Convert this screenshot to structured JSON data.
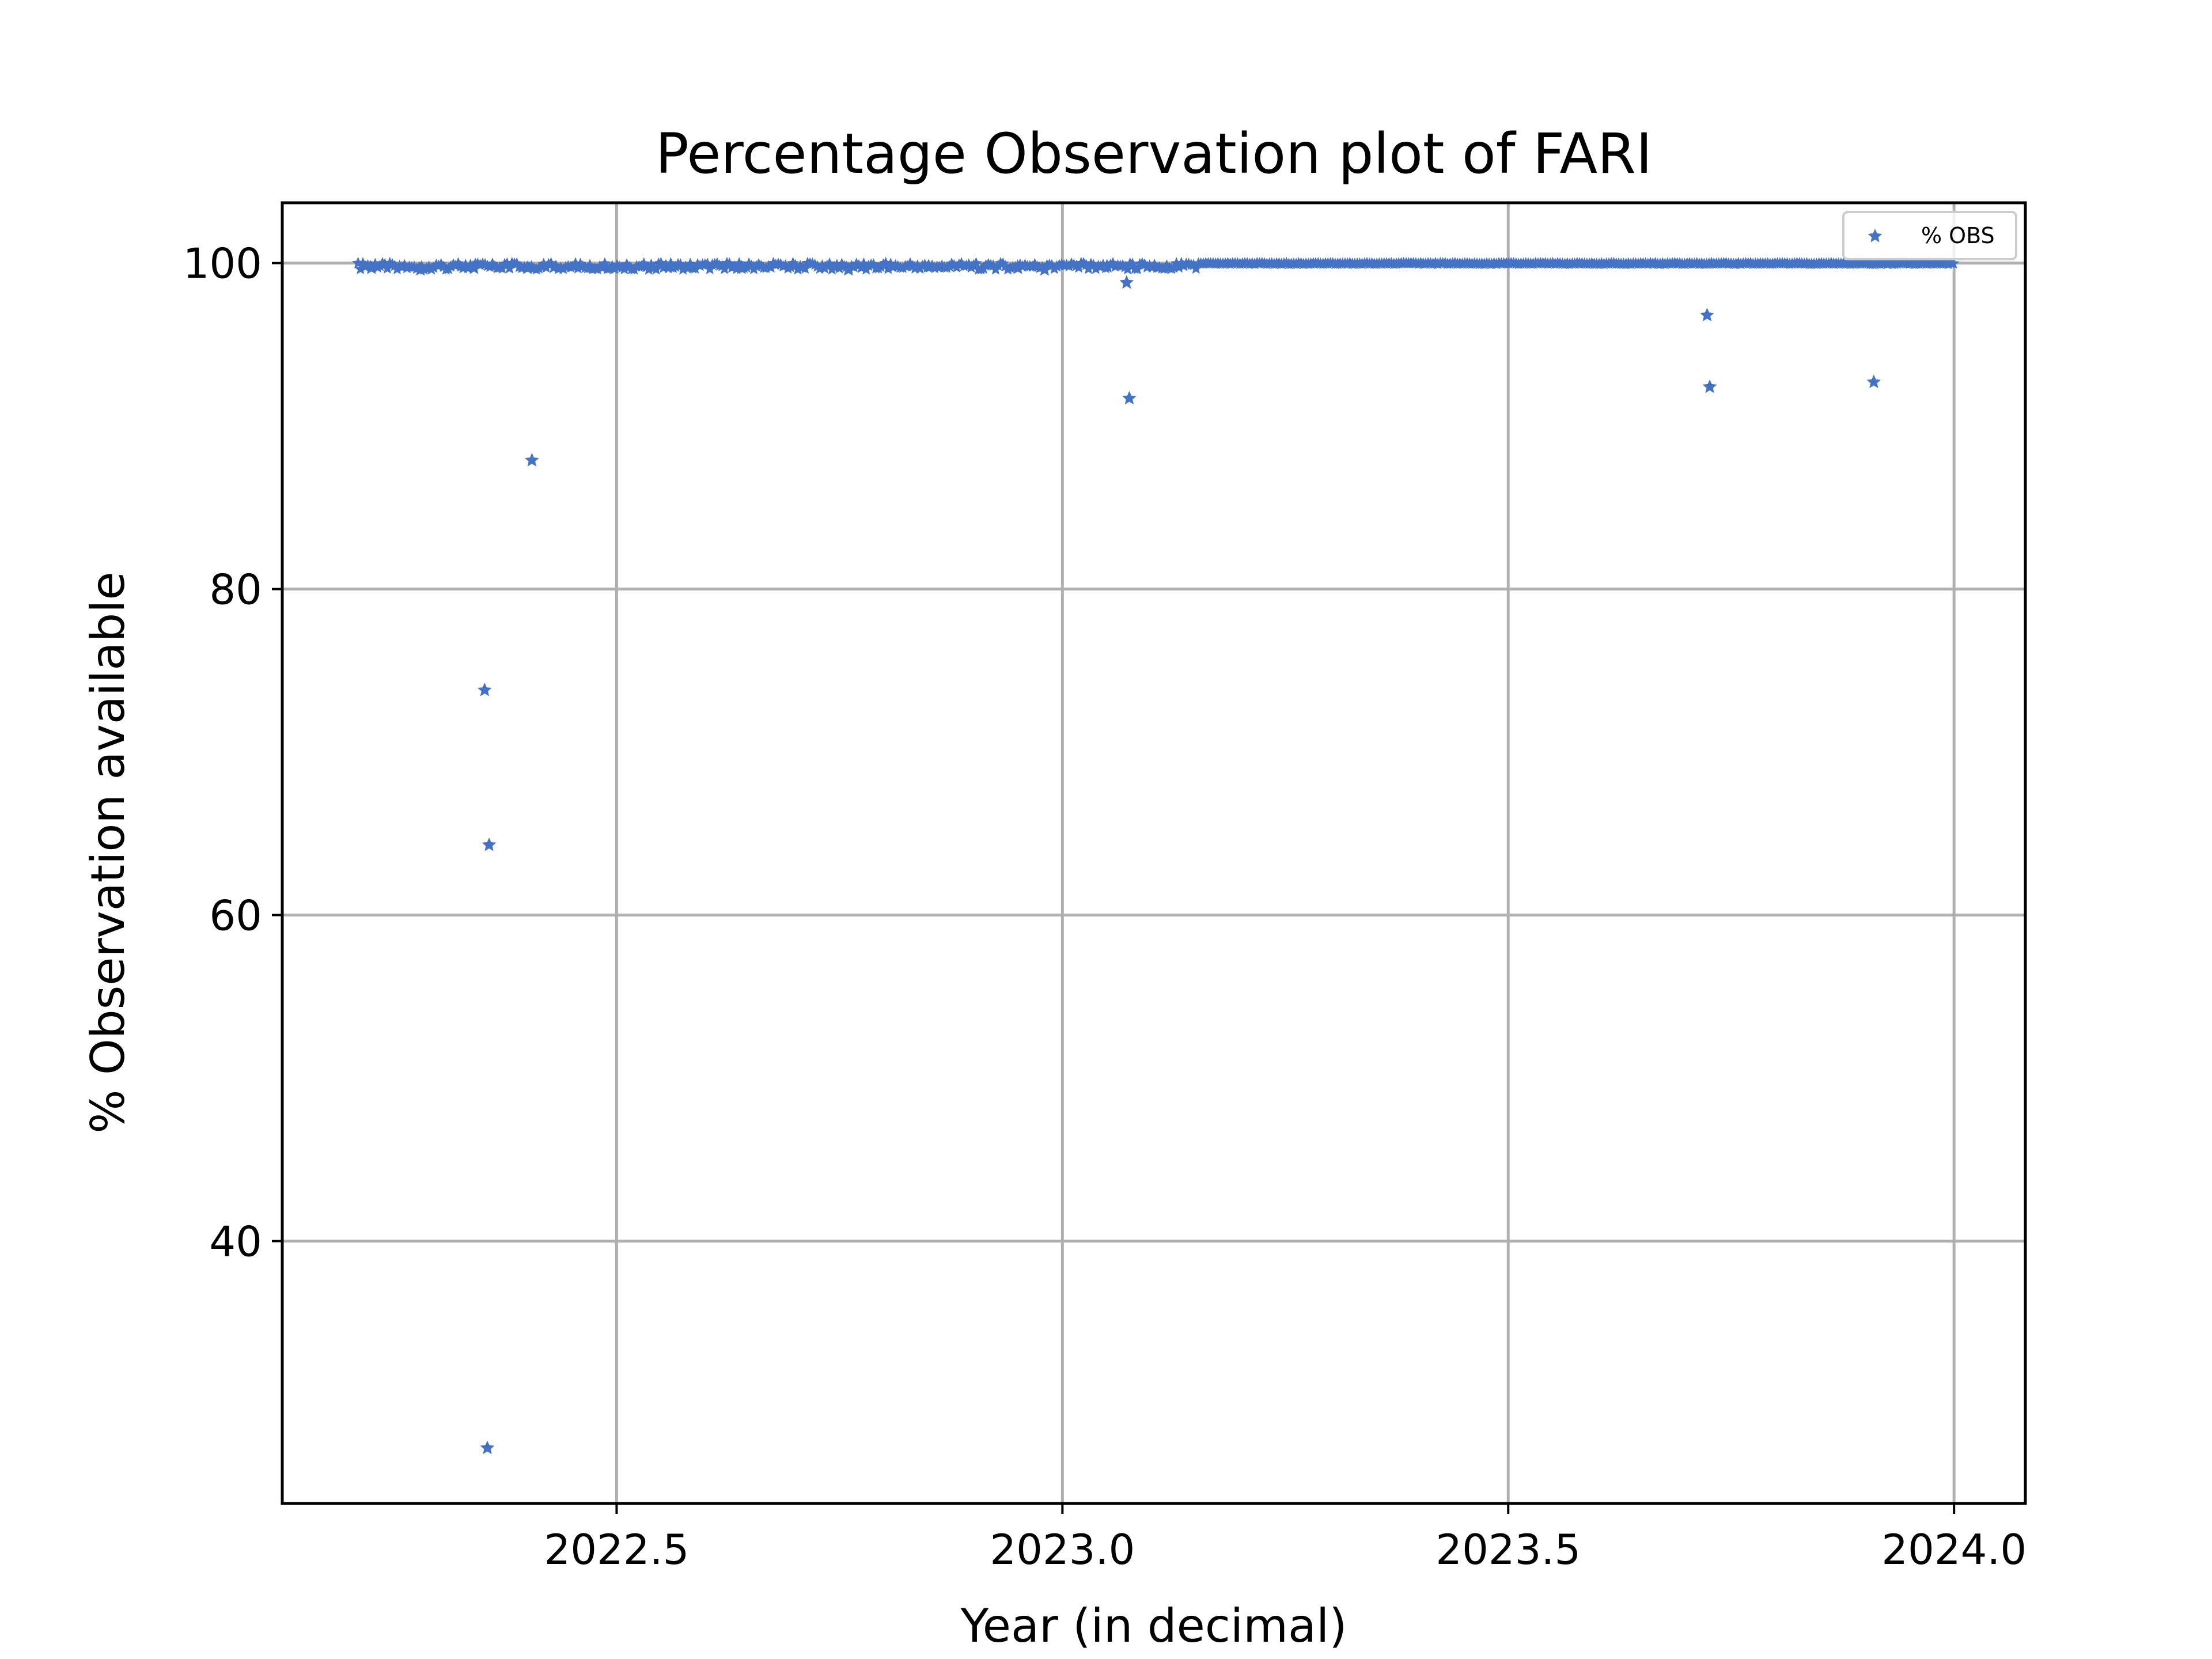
{
  "chart_data": {
    "type": "scatter",
    "title": "Percentage Observation plot of FARI",
    "xlabel": "Year (in decimal)",
    "ylabel": "% Observation available",
    "xlim": [
      2022.125,
      2024.08
    ],
    "ylim": [
      23.9,
      103.7
    ],
    "xticks": [
      2022.5,
      2023.0,
      2023.5,
      2024.0
    ],
    "xtick_labels": [
      "2022.5",
      "2023.0",
      "2023.5",
      "2024.0"
    ],
    "yticks": [
      40,
      60,
      80,
      100
    ],
    "ytick_labels": [
      "40",
      "60",
      "80",
      "100"
    ],
    "grid": true,
    "legend_position": "top-right",
    "marker": "star",
    "color": "#4472c4",
    "series": [
      {
        "name": "% OBS",
        "dense_band": {
          "x_start": 2022.21,
          "x_end": 2024.0,
          "y_min": 99.6,
          "y_max": 100.0,
          "step": 0.00274
        },
        "points": [
          {
            "x": 2022.225,
            "y": 99.7
          },
          {
            "x": 2022.28,
            "y": 99.6
          },
          {
            "x": 2022.34,
            "y": 99.7
          },
          {
            "x": 2022.4,
            "y": 99.7
          },
          {
            "x": 2022.47,
            "y": 99.8
          },
          {
            "x": 2022.56,
            "y": 99.8
          },
          {
            "x": 2022.64,
            "y": 99.7
          },
          {
            "x": 2022.76,
            "y": 99.6
          },
          {
            "x": 2022.85,
            "y": 99.8
          },
          {
            "x": 2022.95,
            "y": 99.7
          },
          {
            "x": 2022.98,
            "y": 99.6
          },
          {
            "x": 2023.05,
            "y": 99.8
          },
          {
            "x": 2022.352,
            "y": 73.8
          },
          {
            "x": 2022.357,
            "y": 64.3
          },
          {
            "x": 2022.355,
            "y": 27.3
          },
          {
            "x": 2022.405,
            "y": 87.9
          },
          {
            "x": 2023.072,
            "y": 98.8
          },
          {
            "x": 2023.075,
            "y": 91.7
          },
          {
            "x": 2023.723,
            "y": 96.8
          },
          {
            "x": 2023.726,
            "y": 92.4
          },
          {
            "x": 2023.91,
            "y": 92.7
          }
        ]
      }
    ]
  }
}
